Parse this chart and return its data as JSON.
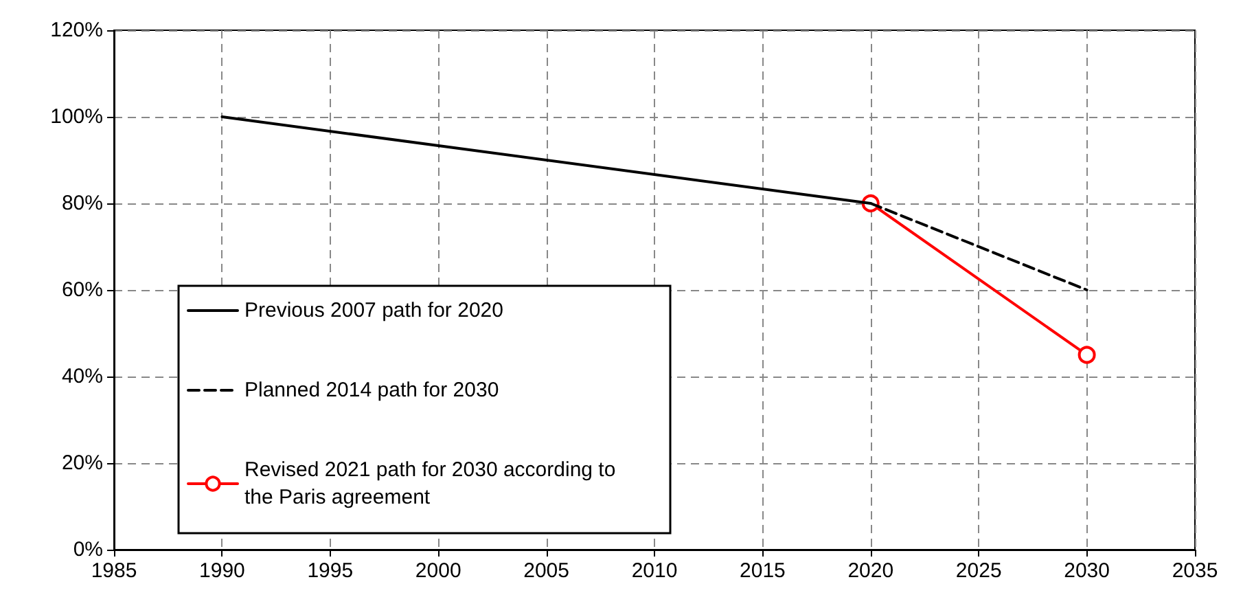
{
  "chart_data": {
    "type": "line",
    "series": [
      {
        "name": "Previous 2007 path for 2020",
        "color": "#000000",
        "x": [
          1990,
          2020
        ],
        "values": [
          100,
          80
        ],
        "line_style": "solid",
        "marker": "none"
      },
      {
        "name": "Planned 2014 path for 2030",
        "color": "#000000",
        "x": [
          2020,
          2030
        ],
        "values": [
          80,
          60
        ],
        "line_style": "dashed",
        "marker": "none"
      },
      {
        "name": "Revised 2021 path for 2030 according to the Paris agreement",
        "color": "#ff0000",
        "x": [
          2020,
          2030
        ],
        "values": [
          80,
          45
        ],
        "line_style": "solid",
        "marker": "circle"
      }
    ],
    "xlim": [
      1985,
      2035
    ],
    "xticks": [
      1985,
      1990,
      1995,
      2000,
      2005,
      2010,
      2015,
      2020,
      2025,
      2030,
      2035
    ],
    "ylim": [
      0,
      120
    ],
    "yticks": [
      {
        "value": 0,
        "label": "0%"
      },
      {
        "value": 20,
        "label": "20%"
      },
      {
        "value": 40,
        "label": "40%"
      },
      {
        "value": 60,
        "label": "60%"
      },
      {
        "value": 80,
        "label": "80%"
      },
      {
        "value": 100,
        "label": "100%"
      },
      {
        "value": 120,
        "label": "120%"
      }
    ],
    "grid": true,
    "legend": "left"
  }
}
